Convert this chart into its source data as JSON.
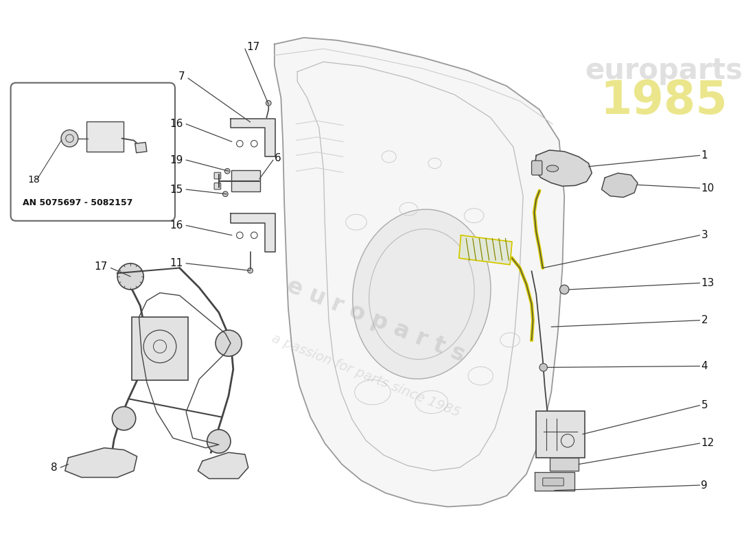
{
  "background_color": "#ffffff",
  "fig_width": 11.0,
  "fig_height": 8.0,
  "an_text": "AN 5075697 - 5082157",
  "watermark1": "e u r o p a r t s",
  "watermark2": "a passion for parts since 1985",
  "logo_text": "1985",
  "logo_sub": "europarts",
  "line_color": "#444444",
  "label_color": "#111111",
  "door_fill": "#f0f0f0",
  "door_edge": "#888888",
  "part_fill": "#e0e0e0",
  "part_edge": "#555555",
  "yellow": "#d4c800",
  "box_edge": "#555555",
  "box_fill": "#ffffff",
  "wm_color": "#cccccc",
  "logo_color": "#d4c800"
}
